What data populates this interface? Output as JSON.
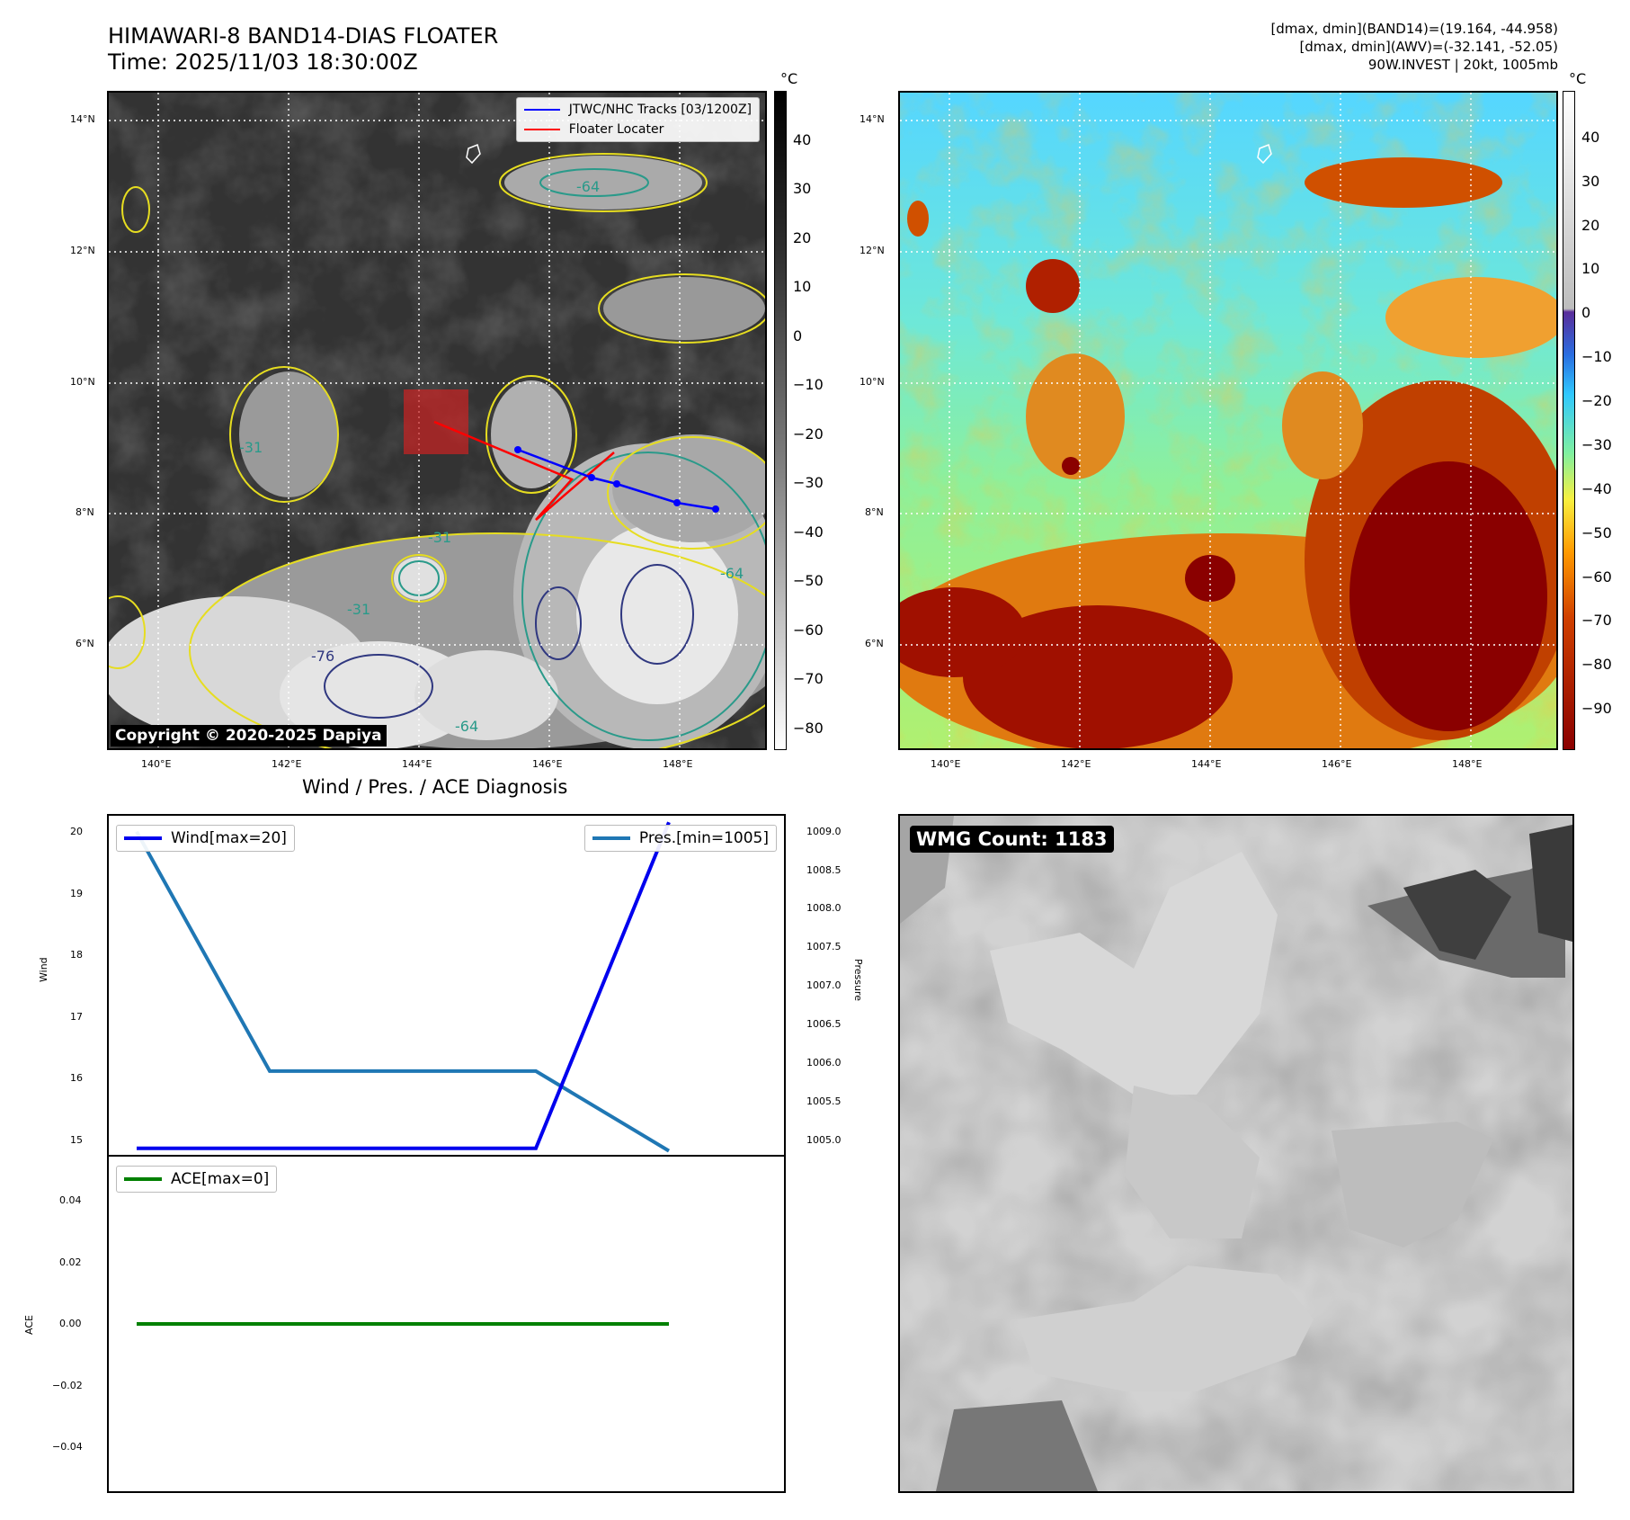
{
  "header": {
    "title_line1": "HIMAWARI-8 BAND14-DIAS FLOATER",
    "title_line2": "Time: 2025/11/03 18:30:00Z",
    "info_line1": "[dmax, dmin](BAND14)=(19.164, -44.958)",
    "info_line2": "[dmax, dmin](AWV)=(-32.141, -52.05)",
    "info_line3": "90W.INVEST | 20kt, 1005mb"
  },
  "map_axes": {
    "lat_labels": [
      "14°N",
      "12°N",
      "10°N",
      "8°N",
      "6°N"
    ],
    "lon_labels": [
      "140°E",
      "142°E",
      "144°E",
      "146°E",
      "148°E"
    ]
  },
  "ir_panel": {
    "legend_tracks": "JTWC/NHC Tracks [03/1200Z]",
    "legend_floater": "Floater Locater",
    "copyright": "Copyright © 2020-2025 Dapiya",
    "colorbar_unit": "°C",
    "colorbar_ticks": [
      "40",
      "30",
      "20",
      "10",
      "0",
      "−10",
      "−20",
      "−30",
      "−40",
      "−50",
      "−60",
      "−70",
      "−80"
    ],
    "contour_labels": [
      "-64",
      "-31",
      "-31",
      "-64",
      "-31",
      "-64",
      "-76"
    ],
    "track_color": "#0000ff",
    "floater_color": "#ff0000"
  },
  "enhanced_panel": {
    "colorbar_unit": "°C",
    "colorbar_ticks": [
      "40",
      "30",
      "20",
      "10",
      "0",
      "−10",
      "−20",
      "−30",
      "−40",
      "−50",
      "−60",
      "−70",
      "−80",
      "−90"
    ]
  },
  "diagnosis": {
    "title": "Wind / Pres. / ACE Diagnosis",
    "wind_axis_label": "Wind",
    "pressure_axis_label": "Pressure",
    "ace_axis_label": "ACE",
    "wind_ticks": [
      "20",
      "19",
      "18",
      "17",
      "16",
      "15"
    ],
    "pressure_ticks": [
      "1009.0",
      "1008.5",
      "1008.0",
      "1007.5",
      "1007.0",
      "1006.5",
      "1006.0",
      "1005.5",
      "1005.0"
    ],
    "ace_ticks": [
      "0.04",
      "0.02",
      "0.00",
      "−0.02",
      "−0.04"
    ],
    "legend_wind": "Wind[max=20]",
    "legend_pres": "Pres.[min=1005]",
    "legend_ace": "ACE[max=0]",
    "wind_color": "#0000ee",
    "pres_color": "#1f77b4",
    "ace_color": "#008000"
  },
  "wmg_panel": {
    "label": "WMG Count: 1183"
  },
  "chart_data": [
    {
      "type": "line",
      "title": "Wind / Pres. / ACE Diagnosis",
      "ylabel": "Wind",
      "ylim": [
        14.9,
        20.1
      ],
      "x": [
        0,
        1,
        2,
        3,
        4
      ],
      "series": [
        {
          "name": "Wind[max=20]",
          "values": [
            15,
            15,
            15,
            15,
            20
          ]
        }
      ]
    },
    {
      "type": "line",
      "ylabel": "Pressure",
      "ylim": [
        1004.95,
        1009.2
      ],
      "x": [
        0,
        1,
        2,
        3,
        4
      ],
      "series": [
        {
          "name": "Pres.[min=1005]",
          "values": [
            1009,
            1006,
            1006,
            1006,
            1005
          ]
        }
      ]
    },
    {
      "type": "line",
      "ylabel": "ACE",
      "ylim": [
        -0.055,
        0.055
      ],
      "x": [
        0,
        1,
        2,
        3,
        4
      ],
      "series": [
        {
          "name": "ACE[max=0]",
          "values": [
            0,
            0,
            0,
            0,
            0
          ]
        }
      ]
    }
  ]
}
